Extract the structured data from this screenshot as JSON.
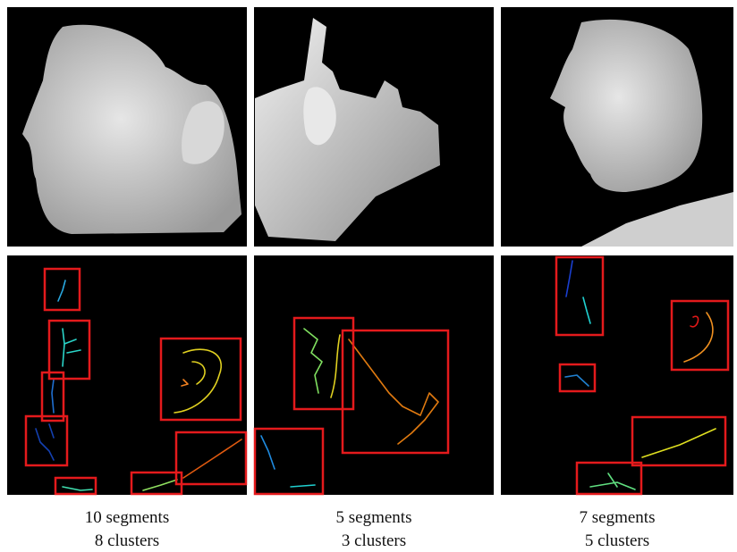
{
  "columns": [
    {
      "segments": "10 segments",
      "clusters": "8 clusters"
    },
    {
      "segments": "5 segments",
      "clusters": "3 clusters"
    },
    {
      "segments": "7 segments",
      "clusters": "5 clusters"
    }
  ]
}
